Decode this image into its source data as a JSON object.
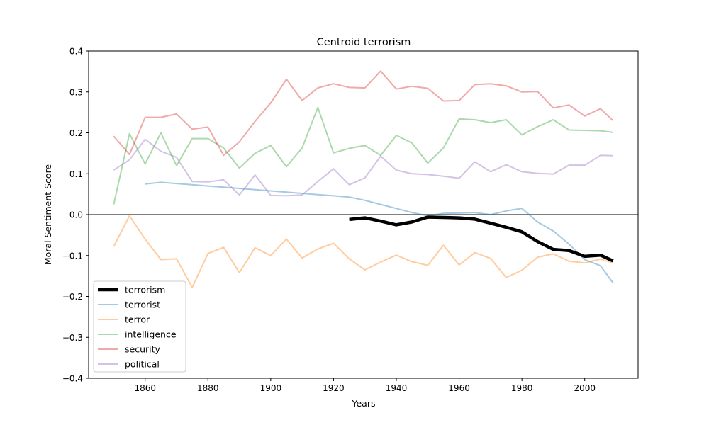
{
  "chart_data": {
    "type": "line",
    "title": "Centroid terrorism",
    "xlabel": "Years",
    "ylabel": "Moral Sentiment Score",
    "xlim": [
      1842,
      2017
    ],
    "ylim": [
      -0.4,
      0.4
    ],
    "xticks": [
      1860,
      1880,
      1900,
      1920,
      1940,
      1960,
      1980,
      2000
    ],
    "yticks": [
      -0.4,
      -0.3,
      -0.2,
      -0.1,
      0.0,
      0.1,
      0.2,
      0.3,
      0.4
    ],
    "ytick_labels": [
      "−0.4",
      "−0.3",
      "−0.2",
      "−0.1",
      "0.0",
      "0.1",
      "0.2",
      "0.3",
      "0.4"
    ],
    "zero_line": true,
    "grid": false,
    "legend": "lower-left",
    "series": [
      {
        "name": "terrorism",
        "color": "#000000",
        "width": 4.5,
        "opacity": 1.0,
        "x": [
          1925,
          1930,
          1935,
          1940,
          1945,
          1950,
          1955,
          1960,
          1965,
          1970,
          1975,
          1980,
          1985,
          1990,
          1995,
          2000,
          2005,
          2009
        ],
        "y": [
          -0.012,
          -0.008,
          -0.016,
          -0.025,
          -0.018,
          -0.006,
          -0.007,
          -0.008,
          -0.011,
          -0.021,
          -0.031,
          -0.042,
          -0.066,
          -0.085,
          -0.088,
          -0.102,
          -0.099,
          -0.113
        ]
      },
      {
        "name": "terrorist",
        "color": "#1f77b4",
        "width": 2,
        "opacity": 0.4,
        "x": [
          1860,
          1865,
          1870,
          1875,
          1880,
          1885,
          1890,
          1895,
          1900,
          1905,
          1910,
          1915,
          1920,
          1925,
          1930,
          1935,
          1940,
          1945,
          1950,
          1955,
          1960,
          1965,
          1970,
          1975,
          1980,
          1985,
          1990,
          1995,
          2000,
          2005,
          2009
        ],
        "y": [
          0.075,
          0.079,
          0.076,
          0.073,
          0.07,
          0.067,
          0.064,
          0.061,
          0.058,
          0.055,
          0.052,
          0.049,
          0.046,
          0.043,
          0.035,
          0.025,
          0.015,
          0.005,
          -0.003,
          0.003,
          0.004,
          0.005,
          0.0,
          0.009,
          0.015,
          -0.018,
          -0.04,
          -0.072,
          -0.11,
          -0.125,
          -0.167
        ]
      },
      {
        "name": "terror",
        "color": "#ff7f0e",
        "width": 2,
        "opacity": 0.4,
        "x": [
          1850,
          1855,
          1860,
          1865,
          1870,
          1875,
          1880,
          1885,
          1890,
          1895,
          1900,
          1905,
          1910,
          1915,
          1920,
          1925,
          1930,
          1935,
          1940,
          1945,
          1950,
          1955,
          1960,
          1965,
          1970,
          1975,
          1980,
          1985,
          1990,
          1995,
          2000,
          2005,
          2009
        ],
        "y": [
          -0.078,
          -0.003,
          -0.06,
          -0.11,
          -0.108,
          -0.178,
          -0.095,
          -0.08,
          -0.142,
          -0.081,
          -0.1,
          -0.06,
          -0.106,
          -0.084,
          -0.07,
          -0.108,
          -0.135,
          -0.116,
          -0.099,
          -0.115,
          -0.124,
          -0.075,
          -0.123,
          -0.093,
          -0.107,
          -0.154,
          -0.136,
          -0.104,
          -0.096,
          -0.114,
          -0.118,
          -0.109,
          -0.118
        ]
      },
      {
        "name": "intelligence",
        "color": "#2ca02c",
        "width": 2,
        "opacity": 0.4,
        "x": [
          1850,
          1855,
          1860,
          1865,
          1870,
          1875,
          1880,
          1885,
          1890,
          1895,
          1900,
          1905,
          1910,
          1915,
          1920,
          1925,
          1930,
          1935,
          1940,
          1945,
          1950,
          1955,
          1960,
          1965,
          1970,
          1975,
          1980,
          1985,
          1990,
          1995,
          2000,
          2005,
          2009
        ],
        "y": [
          0.025,
          0.198,
          0.124,
          0.2,
          0.12,
          0.186,
          0.186,
          0.163,
          0.114,
          0.15,
          0.169,
          0.117,
          0.163,
          0.262,
          0.151,
          0.162,
          0.169,
          0.145,
          0.194,
          0.175,
          0.126,
          0.163,
          0.234,
          0.232,
          0.225,
          0.232,
          0.195,
          0.215,
          0.232,
          0.207,
          0.206,
          0.205,
          0.201
        ]
      },
      {
        "name": "security",
        "color": "#d62728",
        "width": 2,
        "opacity": 0.4,
        "x": [
          1850,
          1855,
          1860,
          1865,
          1870,
          1875,
          1880,
          1885,
          1890,
          1895,
          1900,
          1905,
          1910,
          1915,
          1920,
          1925,
          1930,
          1935,
          1940,
          1945,
          1950,
          1955,
          1960,
          1965,
          1970,
          1975,
          1980,
          1985,
          1990,
          1995,
          2000,
          2005,
          2009
        ],
        "y": [
          0.192,
          0.147,
          0.238,
          0.238,
          0.246,
          0.209,
          0.214,
          0.145,
          0.178,
          0.228,
          0.273,
          0.331,
          0.279,
          0.31,
          0.32,
          0.311,
          0.31,
          0.351,
          0.307,
          0.314,
          0.309,
          0.278,
          0.279,
          0.318,
          0.32,
          0.315,
          0.3,
          0.301,
          0.261,
          0.268,
          0.241,
          0.259,
          0.23
        ]
      },
      {
        "name": "political",
        "color": "#9467bd",
        "width": 2,
        "opacity": 0.4,
        "x": [
          1850,
          1855,
          1860,
          1865,
          1870,
          1875,
          1880,
          1885,
          1890,
          1895,
          1900,
          1905,
          1910,
          1915,
          1920,
          1925,
          1930,
          1935,
          1940,
          1945,
          1950,
          1955,
          1960,
          1965,
          1970,
          1975,
          1980,
          1985,
          1990,
          1995,
          2000,
          2005,
          2009
        ],
        "y": [
          0.109,
          0.134,
          0.184,
          0.155,
          0.14,
          0.081,
          0.08,
          0.085,
          0.048,
          0.097,
          0.047,
          0.046,
          0.048,
          0.081,
          0.112,
          0.073,
          0.09,
          0.143,
          0.109,
          0.1,
          0.098,
          0.094,
          0.089,
          0.129,
          0.105,
          0.122,
          0.105,
          0.101,
          0.099,
          0.121,
          0.121,
          0.145,
          0.144
        ]
      }
    ]
  }
}
